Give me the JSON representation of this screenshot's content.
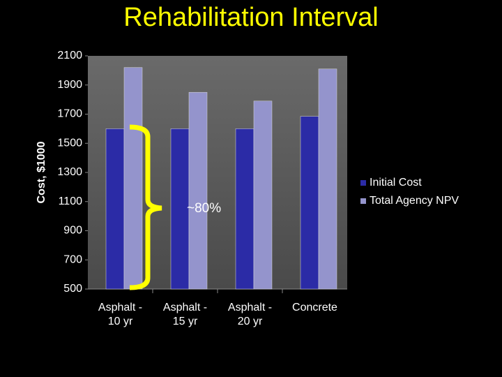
{
  "chart_data": {
    "type": "bar",
    "title": "Rehabilitation Interval",
    "y_label": "Cost, $1000",
    "annotation": "~80%",
    "categories": [
      "Asphalt -\n10 yr",
      "Asphalt -\n15 yr",
      "Asphalt -\n20 yr",
      "Concrete"
    ],
    "series": [
      {
        "name": "Initial Cost",
        "color": "#2b2ba6",
        "values": [
          1600,
          1600,
          1600,
          1685
        ]
      },
      {
        "name": "Total Agency NPV",
        "color": "#9494cc",
        "values": [
          2020,
          1850,
          1790,
          2010
        ]
      }
    ],
    "ylim": [
      500,
      2100
    ],
    "yticks": [
      500,
      700,
      900,
      1100,
      1300,
      1500,
      1700,
      1900,
      2100
    ],
    "legend": "right"
  }
}
